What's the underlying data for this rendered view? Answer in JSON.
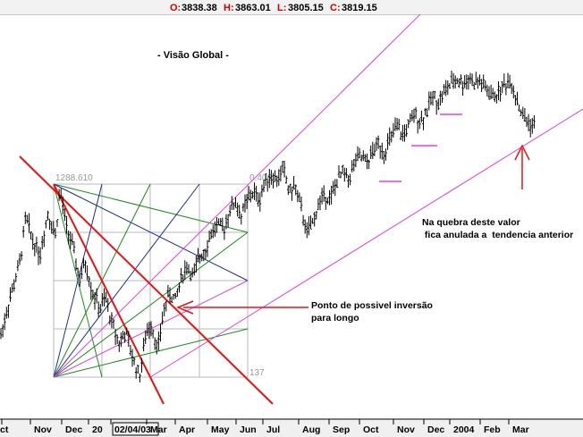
{
  "ohlc": {
    "open_label": "O:",
    "open_value": "3838.38",
    "high_label": "H:",
    "high_value": "3863.01",
    "low_label": "L:",
    "low_value": "3805.15",
    "close_label": "C:",
    "close_value": "3819.15"
  },
  "colors": {
    "price": "#000000",
    "fan_red": "#ee1111",
    "magenta": "#e040e0",
    "green": "#1a8a1a",
    "navy": "#1e2a9a",
    "grid": "#b9b9b9",
    "ohlc_label": "#cc0000",
    "axis_bg": "#f0f0f0"
  },
  "chart_data": {
    "type": "ohlc",
    "title": "- Visão  Global -",
    "x_tick_labels": [
      "ct",
      "Nov",
      "Dec",
      "20",
      "02/04/03",
      "Mar",
      "Apr",
      "May",
      "Jun",
      "Jul",
      "Aug",
      "Sep",
      "Oct",
      "Nov",
      "Dec",
      "2004",
      "Feb",
      "Mar"
    ],
    "gann_box": {
      "high_label": "1288.610",
      "ratio_label": "0.406",
      "bars_label": "137"
    },
    "annotations": [
      {
        "text_line1": "Ponto de possivel inversão",
        "text_line2": "para longo"
      },
      {
        "text_line1": "Na quebra deste valor",
        "text_line2": " fica anulada a  tendencia anterior"
      }
    ],
    "price_path": [
      [
        0.0,
        1010
      ],
      [
        0.5,
        1085
      ],
      [
        1.0,
        1150
      ],
      [
        1.3,
        1235
      ],
      [
        1.6,
        1195
      ],
      [
        2.0,
        1165
      ],
      [
        2.4,
        1240
      ],
      [
        2.8,
        1200
      ],
      [
        3.0,
        1288
      ],
      [
        3.3,
        1220
      ],
      [
        3.6,
        1185
      ],
      [
        4.0,
        1120
      ],
      [
        4.3,
        1150
      ],
      [
        4.6,
        1100
      ],
      [
        5.0,
        1065
      ],
      [
        5.3,
        1085
      ],
      [
        5.6,
        1040
      ],
      [
        6.0,
        1000
      ],
      [
        6.3,
        1025
      ],
      [
        6.6,
        980
      ],
      [
        7.0,
        940
      ],
      [
        7.3,
        1015
      ],
      [
        7.6,
        1040
      ],
      [
        7.9,
        985
      ],
      [
        8.2,
        1060
      ],
      [
        8.5,
        1095
      ],
      [
        8.8,
        1080
      ],
      [
        9.1,
        1125
      ],
      [
        9.4,
        1145
      ],
      [
        9.7,
        1125
      ],
      [
        10.0,
        1160
      ],
      [
        10.3,
        1175
      ],
      [
        10.6,
        1205
      ],
      [
        10.9,
        1220
      ],
      [
        11.2,
        1210
      ],
      [
        11.5,
        1245
      ],
      [
        11.8,
        1262
      ],
      [
        12.1,
        1235
      ],
      [
        12.4,
        1265
      ],
      [
        12.7,
        1280
      ],
      [
        13.0,
        1265
      ],
      [
        13.3,
        1300
      ],
      [
        13.6,
        1310
      ],
      [
        13.9,
        1300
      ],
      [
        14.2,
        1325
      ],
      [
        14.5,
        1280
      ],
      [
        14.8,
        1290
      ],
      [
        15.1,
        1250
      ],
      [
        15.4,
        1205
      ],
      [
        15.7,
        1225
      ],
      [
        16.0,
        1260
      ],
      [
        16.3,
        1275
      ],
      [
        16.6,
        1268
      ],
      [
        16.9,
        1300
      ],
      [
        17.2,
        1315
      ],
      [
        17.5,
        1305
      ],
      [
        17.8,
        1335
      ],
      [
        18.1,
        1345
      ],
      [
        18.4,
        1330
      ],
      [
        18.7,
        1355
      ],
      [
        19.0,
        1368
      ],
      [
        19.3,
        1352
      ],
      [
        19.6,
        1380
      ],
      [
        19.9,
        1398
      ],
      [
        20.2,
        1385
      ],
      [
        20.5,
        1402
      ],
      [
        20.8,
        1420
      ],
      [
        21.1,
        1410
      ],
      [
        21.4,
        1430
      ],
      [
        21.7,
        1455
      ],
      [
        22.0,
        1445
      ],
      [
        22.3,
        1465
      ],
      [
        22.6,
        1478
      ],
      [
        22.9,
        1488
      ],
      [
        23.2,
        1478
      ],
      [
        23.5,
        1490
      ],
      [
        23.8,
        1480
      ],
      [
        24.1,
        1482
      ],
      [
        24.4,
        1468
      ],
      [
        24.7,
        1455
      ],
      [
        25.0,
        1460
      ],
      [
        25.3,
        1478
      ],
      [
        25.6,
        1485
      ],
      [
        25.9,
        1452
      ],
      [
        26.2,
        1422
      ],
      [
        26.5,
        1408
      ],
      [
        26.8,
        1400
      ]
    ]
  }
}
